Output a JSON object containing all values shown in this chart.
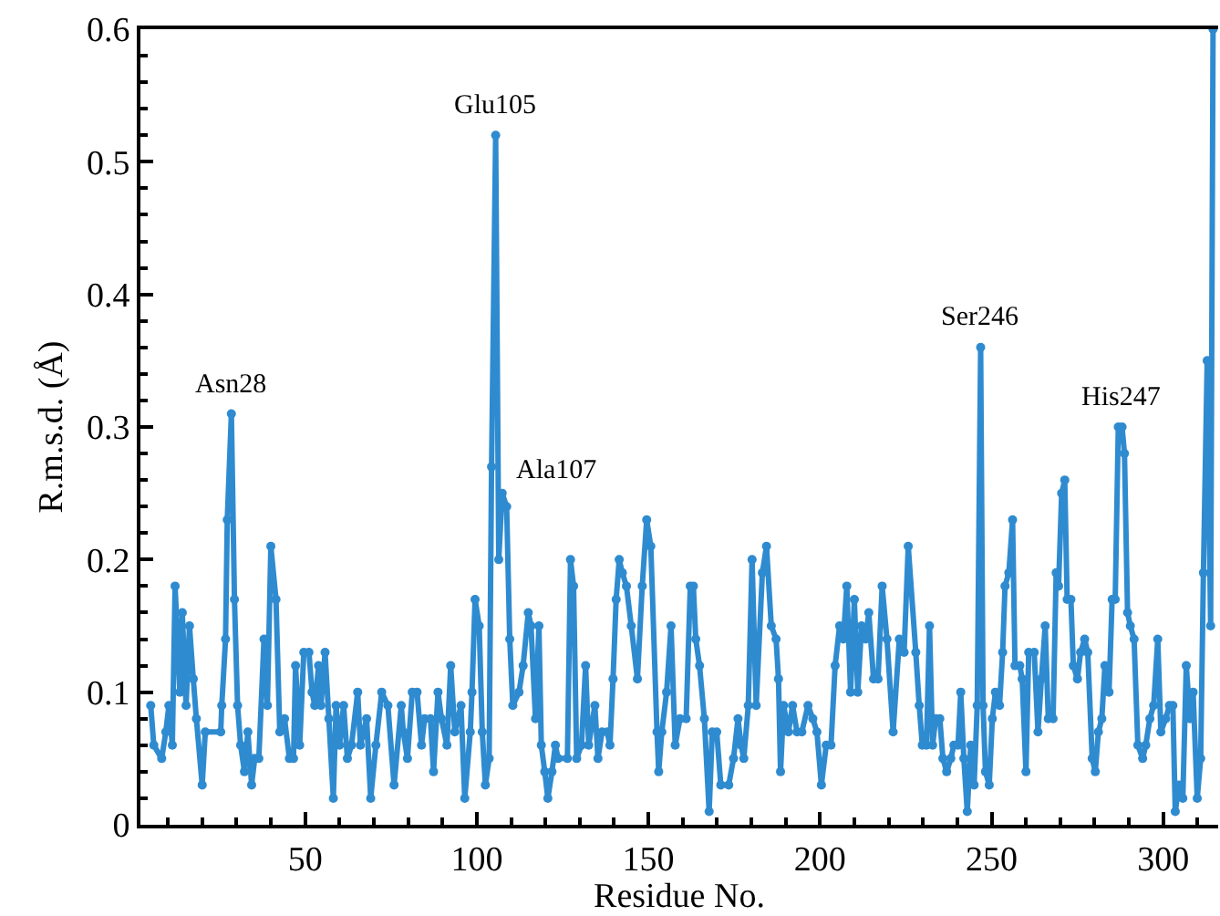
{
  "chart_data": {
    "type": "line",
    "xlabel": "Residue No.",
    "ylabel": "R.m.s.d. (Å)",
    "x": [
      5.0,
      5.9,
      8.2,
      9.4,
      10.3,
      11.3,
      12.1,
      13.5,
      14.2,
      15.3,
      16.3,
      17.4,
      18.3,
      20.0,
      20.9,
      25.4,
      25.7,
      26.8,
      27.3,
      28.5,
      29.4,
      30.3,
      31.2,
      32.3,
      33.3,
      34.4,
      35.3,
      36.5,
      38.0,
      39.0,
      40.0,
      41.5,
      42.6,
      44.0,
      45.4,
      46.6,
      47.2,
      48.4,
      49.6,
      51.1,
      52.0,
      52.8,
      53.9,
      54.6,
      55.8,
      56.9,
      58.2,
      59.0,
      60.0,
      61.2,
      62.3,
      63.5,
      65.3,
      66.1,
      67.9,
      69.1,
      70.6,
      72.3,
      74.1,
      75.9,
      78.0,
      78.6,
      79.8,
      81.2,
      82.6,
      83.9,
      84.8,
      86.5,
      87.4,
      88.7,
      89.7,
      91.3,
      92.4,
      93.6,
      95.4,
      96.5,
      98.1,
      98.6,
      99.5,
      100.7,
      101.6,
      102.5,
      103.6,
      104.3,
      105.5,
      106.4,
      107.4,
      108.7,
      109.6,
      110.5,
      112.3,
      113.5,
      115.0,
      115.8,
      117.1,
      118.1,
      118.8,
      119.8,
      120.7,
      121.9,
      122.9,
      123.7,
      126.4,
      127.3,
      128.2,
      129.1,
      130.5,
      131.7,
      132.6,
      134.4,
      135.3,
      136.5,
      138.0,
      138.8,
      139.7,
      140.6,
      141.5,
      142.4,
      143.6,
      145.0,
      146.8,
      148.2,
      149.5,
      150.7,
      152.5,
      153.0,
      153.9,
      155.3,
      156.6,
      157.8,
      159.2,
      161.0,
      162.2,
      163.1,
      163.8,
      164.9,
      166.3,
      167.7,
      168.6,
      169.9,
      171.1,
      173.4,
      174.8,
      176.1,
      177.0,
      177.8,
      179.1,
      180.2,
      181.4,
      183.2,
      184.4,
      185.8,
      187.2,
      187.9,
      188.5,
      189.4,
      190.8,
      192.0,
      193.3,
      194.7,
      196.5,
      197.9,
      199.1,
      200.4,
      201.8,
      203.2,
      204.4,
      205.7,
      206.8,
      207.8,
      208.9,
      210.0,
      211.0,
      212.1,
      213.3,
      214.2,
      215.6,
      216.9,
      218.1,
      219.5,
      221.3,
      223.1,
      224.5,
      225.7,
      227.9,
      228.9,
      229.8,
      231.0,
      231.9,
      232.8,
      233.7,
      234.9,
      235.8,
      236.9,
      238.1,
      239.0,
      240.2,
      241.0,
      241.9,
      242.9,
      243.9,
      244.9,
      245.8,
      246.8,
      247.5,
      248.2,
      249.3,
      250.2,
      251.1,
      252.3,
      253.2,
      253.9,
      255.0,
      256.1,
      256.8,
      258.2,
      258.9,
      260.0,
      260.8,
      262.4,
      263.5,
      264.5,
      265.6,
      266.5,
      267.9,
      268.8,
      269.5,
      270.4,
      271.3,
      272.0,
      273.1,
      273.8,
      275.0,
      275.9,
      277.1,
      278.0,
      279.3,
      280.2,
      281.1,
      282.1,
      283.0,
      284.2,
      285.1,
      286.0,
      286.9,
      288.0,
      288.7,
      289.6,
      290.4,
      291.5,
      292.6,
      294.0,
      294.9,
      296.1,
      297.2,
      298.4,
      299.3,
      300.7,
      301.8,
      302.8,
      303.5,
      304.6,
      305.7,
      306.7,
      307.8,
      308.7,
      309.9,
      310.9,
      311.7,
      312.8,
      313.8,
      314.5
    ],
    "series": [
      {
        "color": "#2f8bd0",
        "values": [
          0.09,
          0.06,
          0.05,
          0.07,
          0.09,
          0.06,
          0.18,
          0.1,
          0.16,
          0.09,
          0.15,
          0.11,
          0.08,
          0.03,
          0.07,
          0.07,
          0.09,
          0.14,
          0.23,
          0.31,
          0.17,
          0.09,
          0.06,
          0.04,
          0.07,
          0.03,
          0.05,
          0.05,
          0.14,
          0.09,
          0.21,
          0.17,
          0.07,
          0.08,
          0.05,
          0.05,
          0.12,
          0.06,
          0.13,
          0.13,
          0.1,
          0.09,
          0.12,
          0.09,
          0.13,
          0.08,
          0.02,
          0.09,
          0.06,
          0.09,
          0.05,
          0.06,
          0.1,
          0.06,
          0.08,
          0.02,
          0.06,
          0.1,
          0.09,
          0.03,
          0.09,
          0.07,
          0.05,
          0.1,
          0.1,
          0.06,
          0.08,
          0.08,
          0.04,
          0.1,
          0.08,
          0.06,
          0.12,
          0.07,
          0.09,
          0.02,
          0.07,
          0.1,
          0.17,
          0.15,
          0.07,
          0.03,
          0.05,
          0.27,
          0.52,
          0.2,
          0.25,
          0.24,
          0.14,
          0.09,
          0.1,
          0.12,
          0.16,
          0.15,
          0.08,
          0.15,
          0.06,
          0.04,
          0.02,
          0.04,
          0.06,
          0.05,
          0.05,
          0.2,
          0.18,
          0.05,
          0.06,
          0.12,
          0.06,
          0.09,
          0.05,
          0.07,
          0.07,
          0.06,
          0.11,
          0.17,
          0.2,
          0.19,
          0.18,
          0.15,
          0.11,
          0.18,
          0.23,
          0.21,
          0.07,
          0.04,
          0.07,
          0.1,
          0.15,
          0.06,
          0.08,
          0.08,
          0.18,
          0.18,
          0.14,
          0.12,
          0.08,
          0.01,
          0.07,
          0.07,
          0.03,
          0.03,
          0.05,
          0.08,
          0.06,
          0.05,
          0.09,
          0.2,
          0.09,
          0.19,
          0.21,
          0.15,
          0.14,
          0.11,
          0.04,
          0.09,
          0.07,
          0.09,
          0.07,
          0.07,
          0.09,
          0.08,
          0.07,
          0.03,
          0.06,
          0.06,
          0.12,
          0.15,
          0.14,
          0.18,
          0.1,
          0.17,
          0.1,
          0.15,
          0.14,
          0.16,
          0.11,
          0.11,
          0.18,
          0.14,
          0.07,
          0.14,
          0.13,
          0.21,
          0.13,
          0.09,
          0.06,
          0.06,
          0.15,
          0.06,
          0.08,
          0.08,
          0.05,
          0.04,
          0.05,
          0.06,
          0.06,
          0.1,
          0.05,
          0.01,
          0.06,
          0.03,
          0.09,
          0.36,
          0.09,
          0.04,
          0.03,
          0.08,
          0.1,
          0.09,
          0.13,
          0.18,
          0.19,
          0.23,
          0.12,
          0.12,
          0.11,
          0.04,
          0.13,
          0.13,
          0.07,
          0.11,
          0.15,
          0.08,
          0.08,
          0.19,
          0.18,
          0.25,
          0.26,
          0.17,
          0.17,
          0.12,
          0.11,
          0.13,
          0.14,
          0.13,
          0.05,
          0.04,
          0.07,
          0.08,
          0.12,
          0.1,
          0.17,
          0.17,
          0.3,
          0.3,
          0.28,
          0.16,
          0.15,
          0.14,
          0.06,
          0.05,
          0.06,
          0.08,
          0.09,
          0.14,
          0.07,
          0.08,
          0.09,
          0.09,
          0.01,
          0.03,
          0.02,
          0.12,
          0.08,
          0.1,
          0.02,
          0.05,
          0.19,
          0.35,
          0.15,
          0.6
        ]
      }
    ],
    "xlim": [
      2,
      316
    ],
    "xticks": [
      50,
      100,
      150,
      200,
      250,
      300
    ],
    "ylim": [
      0,
      0.6
    ],
    "yticks": [
      0,
      0.1,
      0.2,
      0.3,
      0.4,
      0.5,
      0.6
    ],
    "marker": "circle",
    "line_style": "solid",
    "annotations": [
      {
        "text": "Asn28",
        "x": 28.5,
        "y": 0.31
      },
      {
        "text": "Glu105",
        "x": 105.5,
        "y": 0.52
      },
      {
        "text": "Ala107",
        "x": 107.4,
        "y": 0.25
      },
      {
        "text": "Ser246",
        "x": 246.8,
        "y": 0.36
      },
      {
        "text": "His247",
        "x": 288.0,
        "y": 0.3
      }
    ]
  }
}
